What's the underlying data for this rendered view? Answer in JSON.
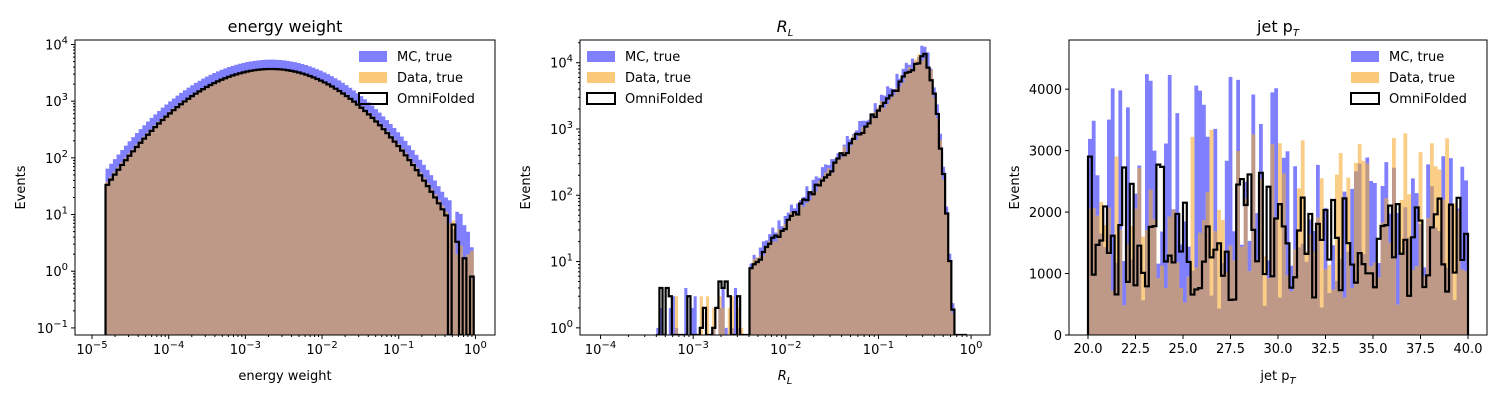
{
  "colors": {
    "mc": "#8080ff",
    "data": "#fbc97a",
    "overlap": "#bf9988",
    "omni": "#000000"
  },
  "legend_labels": [
    "MC, true",
    "Data, true",
    "OmniFolded"
  ],
  "chart_data": [
    {
      "type": "histogram",
      "title": "energy weight",
      "xlabel": "energy weight",
      "ylabel": "Events",
      "xscale": "log",
      "yscale": "log",
      "xlim": [
        6e-06,
        1.8
      ],
      "ylim": [
        0.075,
        12000
      ],
      "xticks": [
        {
          "v": 1e-05,
          "b": "10",
          "e": "−5"
        },
        {
          "v": 0.0001,
          "b": "10",
          "e": "−4"
        },
        {
          "v": 0.001,
          "b": "10",
          "e": "−3"
        },
        {
          "v": 0.01,
          "b": "10",
          "e": "−2"
        },
        {
          "v": 0.1,
          "b": "10",
          "e": "−1"
        },
        {
          "v": 1,
          "b": "10",
          "e": "0"
        }
      ],
      "yticks": [
        {
          "v": 0.1,
          "b": "10",
          "e": "−1"
        },
        {
          "v": 1,
          "b": "10",
          "e": "0"
        },
        {
          "v": 10,
          "b": "10",
          "e": "1"
        },
        {
          "v": 100,
          "b": "10",
          "e": "2"
        },
        {
          "v": 1000,
          "b": "10",
          "e": "3"
        },
        {
          "v": 10000,
          "b": "10",
          "e": "4"
        }
      ],
      "legend_position": "top-right",
      "series": [
        {
          "name": "MC, true",
          "kind": "filled",
          "peak": [
            0.0022,
            5400
          ],
          "range": [
            1.5e-05,
            0.95
          ]
        },
        {
          "name": "Data, true",
          "kind": "filled",
          "peak": [
            0.0022,
            3800
          ],
          "range": [
            1.5e-05,
            0.95
          ]
        },
        {
          "name": "OmniFolded",
          "kind": "step",
          "peak": [
            0.0022,
            3700
          ],
          "range": [
            1.5e-05,
            0.95
          ]
        }
      ]
    },
    {
      "type": "histogram",
      "title": "R",
      "title_sub": "L",
      "xlabel": "R",
      "xlabel_sub": "L",
      "ylabel": "Events",
      "xscale": "log",
      "yscale": "log",
      "xlim": [
        6e-05,
        1.6
      ],
      "ylim": [
        0.78,
        22000
      ],
      "xticks": [
        {
          "v": 0.0001,
          "b": "10",
          "e": "−4"
        },
        {
          "v": 0.001,
          "b": "10",
          "e": "−3"
        },
        {
          "v": 0.01,
          "b": "10",
          "e": "−2"
        },
        {
          "v": 0.1,
          "b": "10",
          "e": "−1"
        },
        {
          "v": 1,
          "b": "10",
          "e": "0"
        }
      ],
      "yticks": [
        {
          "v": 1,
          "b": "10",
          "e": "0"
        },
        {
          "v": 10,
          "b": "10",
          "e": "1"
        },
        {
          "v": 100,
          "b": "10",
          "e": "2"
        },
        {
          "v": 1000,
          "b": "10",
          "e": "3"
        },
        {
          "v": 10000,
          "b": "10",
          "e": "4"
        }
      ],
      "legend_position": "top-left",
      "series": [
        {
          "name": "MC, true",
          "kind": "filled",
          "peak": [
            0.3,
            12500
          ],
          "range": [
            0.0004,
            0.9
          ]
        },
        {
          "name": "Data, true",
          "kind": "filled",
          "peak": [
            0.3,
            8500
          ],
          "range": [
            0.0004,
            0.9
          ]
        },
        {
          "name": "OmniFolded",
          "kind": "step",
          "peak": [
            0.3,
            8200
          ],
          "range": [
            0.0004,
            0.9
          ]
        }
      ]
    },
    {
      "type": "histogram",
      "title": "jet p",
      "title_sub": "T",
      "xlabel": "jet p",
      "xlabel_sub": "T",
      "ylabel": "Events",
      "xscale": "linear",
      "yscale": "linear",
      "xlim": [
        19.0,
        41.0
      ],
      "ylim": [
        0,
        4800
      ],
      "xticks": [
        {
          "v": 20,
          "t": "20.0"
        },
        {
          "v": 22.5,
          "t": "22.5"
        },
        {
          "v": 25,
          "t": "25.0"
        },
        {
          "v": 27.5,
          "t": "27.5"
        },
        {
          "v": 30,
          "t": "30.0"
        },
        {
          "v": 32.5,
          "t": "32.5"
        },
        {
          "v": 35,
          "t": "35.0"
        },
        {
          "v": 37.5,
          "t": "37.5"
        },
        {
          "v": 40,
          "t": "40.0"
        }
      ],
      "yticks": [
        {
          "v": 0,
          "t": "0"
        },
        {
          "v": 1000,
          "t": "1000"
        },
        {
          "v": 2000,
          "t": "2000"
        },
        {
          "v": 3000,
          "t": "3000"
        },
        {
          "v": 4000,
          "t": "4000"
        }
      ],
      "legend_position": "top-right",
      "series": [
        {
          "name": "MC, true",
          "kind": "filled",
          "range": [
            20,
            40
          ],
          "mean": 1900,
          "max": 4520
        },
        {
          "name": "Data, true",
          "kind": "filled",
          "range": [
            20,
            40
          ],
          "mean": 1800,
          "max": 3580
        },
        {
          "name": "OmniFolded",
          "kind": "step",
          "range": [
            20,
            40
          ],
          "mean": 1700,
          "max": 3000
        }
      ]
    }
  ]
}
